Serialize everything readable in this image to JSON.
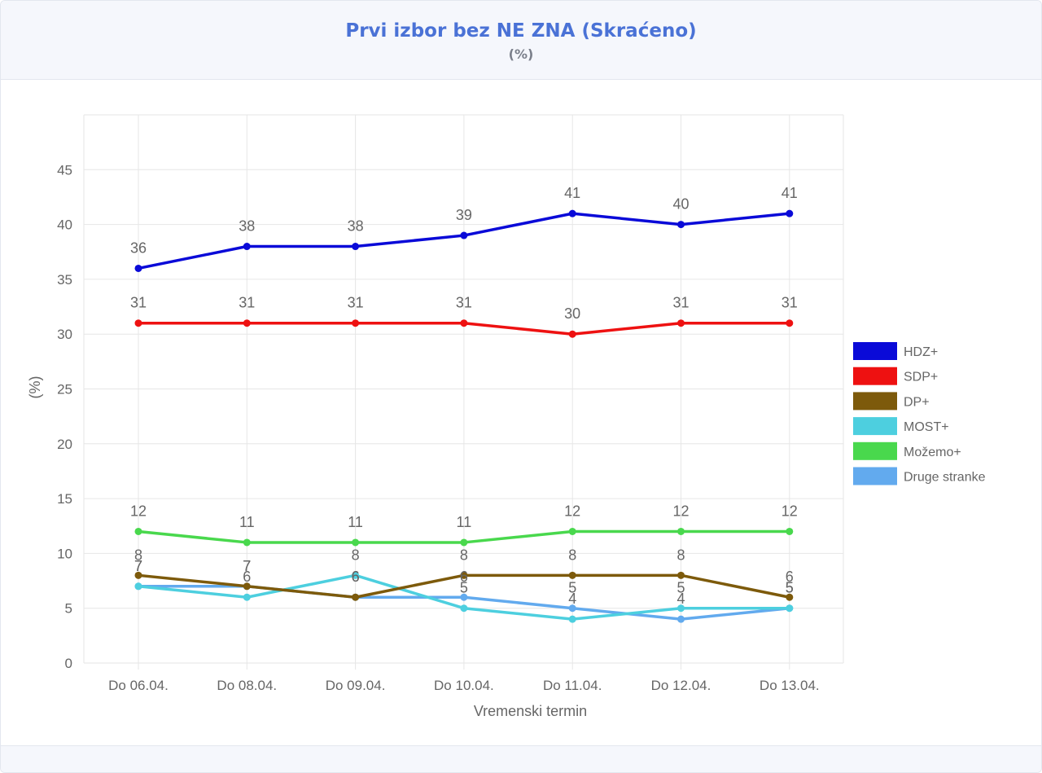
{
  "header": {
    "title": "Prvi izbor bez NE ZNA (Skraćeno)",
    "subtitle": "(%)"
  },
  "chart_data": {
    "type": "line",
    "title": "Prvi izbor bez NE ZNA (Skraćeno)",
    "subtitle": "(%)",
    "xlabel": "Vremenski termin",
    "ylabel": "(%)",
    "ylim": [
      0,
      50
    ],
    "yticks": [
      0,
      5,
      10,
      15,
      20,
      25,
      30,
      35,
      40,
      45
    ],
    "grid": true,
    "legend_position": "right",
    "categories": [
      "Do 06.04.",
      "Do 08.04.",
      "Do 09.04.",
      "Do 10.04.",
      "Do 11.04.",
      "Do 12.04.",
      "Do 13.04."
    ],
    "series": [
      {
        "name": "HDZ+",
        "color": "#0a0ad8",
        "values": [
          36,
          38,
          38,
          39,
          41,
          40,
          41
        ]
      },
      {
        "name": "SDP+",
        "color": "#ee1111",
        "values": [
          31,
          31,
          31,
          31,
          30,
          31,
          31
        ]
      },
      {
        "name": "DP+",
        "color": "#7d5a0b",
        "values": [
          8,
          7,
          6,
          8,
          8,
          8,
          6
        ]
      },
      {
        "name": "MOST+",
        "color": "#4dcfdf",
        "values": [
          7,
          6,
          8,
          5,
          4,
          5,
          5
        ]
      },
      {
        "name": "Možemo+",
        "color": "#49d84d",
        "values": [
          12,
          11,
          11,
          11,
          12,
          12,
          12
        ]
      },
      {
        "name": "Druge stranke",
        "color": "#62aaee",
        "values": [
          7,
          7,
          6,
          6,
          5,
          4,
          5
        ]
      }
    ]
  }
}
